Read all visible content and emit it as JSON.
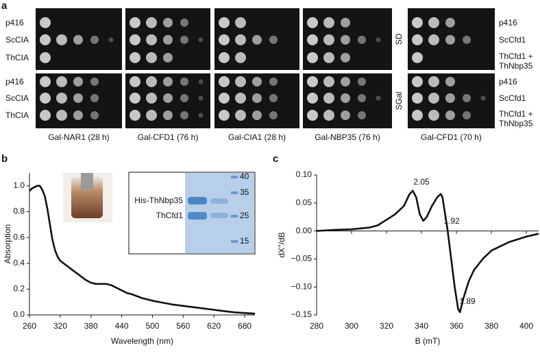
{
  "panels": [
    "a",
    "b",
    "c"
  ],
  "spot_assay": {
    "row_labels": [
      "p416",
      "ScCIA",
      "ThCIA"
    ],
    "conditions": [
      "SD",
      "SGal"
    ],
    "right_row_labels": [
      "p416",
      "ScCfd1",
      "ThCfd1 + ThNbp35"
    ],
    "captions": [
      "Gal-NAR1 (28 h)",
      "Gal-CFD1 (76 h)",
      "Gal-CIA1 (28 h)",
      "Gal-NBP35 (76 h)",
      "Gal-CFD1 (70 h)"
    ]
  },
  "chart_data": [
    {
      "type": "line",
      "x_label": "Wavelength (nm)",
      "y_label": "Absorption",
      "inset_labels": [
        "His-ThNbp35",
        "ThCfd1"
      ],
      "marker_labels": [
        "40",
        "35",
        "25",
        "15"
      ],
      "color": "#111111",
      "x": [
        260,
        265,
        270,
        275,
        280,
        285,
        290,
        295,
        300,
        305,
        310,
        315,
        320,
        330,
        340,
        350,
        360,
        370,
        380,
        390,
        400,
        410,
        420,
        430,
        440,
        450,
        460,
        480,
        500,
        520,
        540,
        560,
        580,
        600,
        620,
        640,
        660,
        680,
        700
      ],
      "values": [
        0.96,
        0.98,
        0.99,
        1.0,
        1.0,
        0.97,
        0.92,
        0.82,
        0.7,
        0.58,
        0.5,
        0.45,
        0.42,
        0.39,
        0.36,
        0.33,
        0.3,
        0.27,
        0.25,
        0.24,
        0.24,
        0.24,
        0.23,
        0.21,
        0.19,
        0.17,
        0.16,
        0.13,
        0.11,
        0.095,
        0.08,
        0.07,
        0.06,
        0.05,
        0.04,
        0.03,
        0.02,
        0.015,
        0.01
      ],
      "xlim": [
        260,
        700
      ],
      "xticks": [
        260,
        320,
        380,
        440,
        500,
        560,
        620,
        680
      ],
      "ylim": [
        0,
        1.1
      ],
      "yticks": [
        {
          "value": 0,
          "label": "0.0"
        },
        0.2,
        0.4,
        0.6,
        0.8,
        {
          "value": 1,
          "label": "1.0"
        }
      ]
    },
    {
      "type": "line",
      "x_label": "B (mT)",
      "y_label": "dX''/dB",
      "annotations": [
        "2.05",
        "1.92",
        "1.89"
      ],
      "color": "#111111",
      "x": [
        280,
        290,
        300,
        310,
        315,
        320,
        325,
        330,
        333,
        335,
        337,
        339,
        341,
        343,
        346,
        349,
        351,
        352,
        354,
        355,
        357,
        359,
        361,
        362,
        364,
        367,
        370,
        375,
        380,
        390,
        400,
        407
      ],
      "values": [
        0,
        0.002,
        0.003,
        0.006,
        0.01,
        0.02,
        0.03,
        0.045,
        0.065,
        0.072,
        0.06,
        0.03,
        0.018,
        0.025,
        0.045,
        0.06,
        0.066,
        0.06,
        0.02,
        0,
        -0.05,
        -0.1,
        -0.14,
        -0.145,
        -0.12,
        -0.09,
        -0.07,
        -0.05,
        -0.035,
        -0.02,
        -0.01,
        -0.005
      ],
      "xlim": [
        280,
        407
      ],
      "xticks": [
        280,
        300,
        320,
        340,
        360,
        380,
        400
      ],
      "ylim": [
        -0.15,
        0.1
      ],
      "yticks": [
        {
          "value": 0.1,
          "label": "0.10"
        },
        0.05,
        {
          "value": 0,
          "label": "0.00"
        },
        {
          "value": -0.05,
          "label": "−0.05"
        },
        {
          "value": -0.1,
          "label": "−0.10"
        },
        {
          "value": -0.15,
          "label": "−0.15"
        }
      ]
    }
  ]
}
